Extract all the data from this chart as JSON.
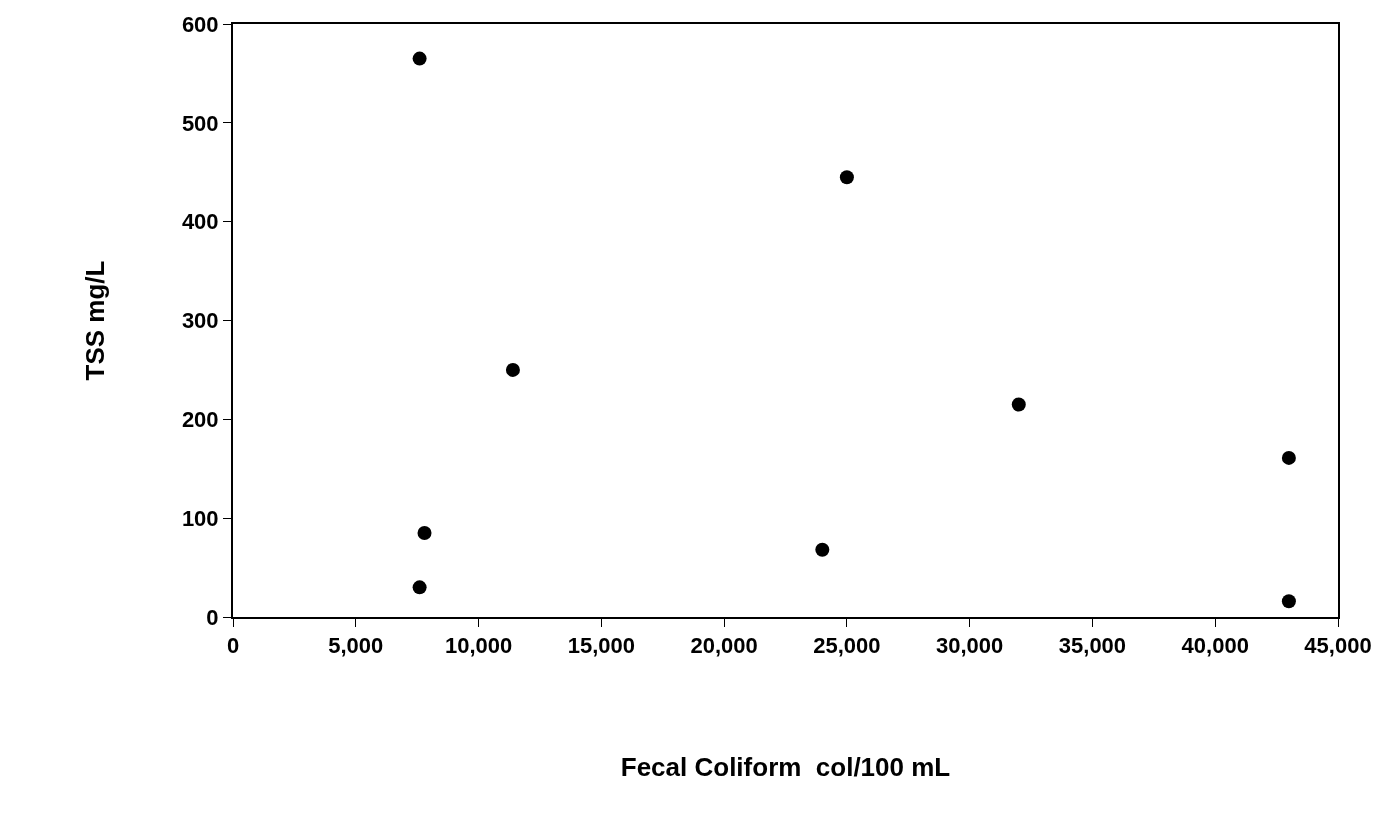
{
  "chart_data": {
    "type": "scatter",
    "xlabel": "Fecal Coliform  col/100 mL",
    "ylabel": "TSS mg/L",
    "x": [
      7600,
      7600,
      7800,
      11400,
      25000,
      24000,
      32000,
      43000,
      43000
    ],
    "values": [
      565,
      30,
      85,
      250,
      445,
      68,
      215,
      161,
      16
    ],
    "color": "#000000",
    "marker": "circle",
    "legend": false,
    "xlim": [
      0,
      45000
    ],
    "xticks": [
      {
        "value": 0,
        "label": "0"
      },
      {
        "value": 5000,
        "label": "5,000"
      },
      {
        "value": 10000,
        "label": "10,000"
      },
      {
        "value": 15000,
        "label": "15,000"
      },
      {
        "value": 20000,
        "label": "20,000"
      },
      {
        "value": 25000,
        "label": "25,000"
      },
      {
        "value": 30000,
        "label": "30,000"
      },
      {
        "value": 35000,
        "label": "35,000"
      },
      {
        "value": 40000,
        "label": "40,000"
      },
      {
        "value": 45000,
        "label": "45,000"
      }
    ],
    "ylim": [
      0,
      600
    ],
    "yticks": [
      0,
      100,
      200,
      300,
      400,
      500,
      600
    ]
  }
}
